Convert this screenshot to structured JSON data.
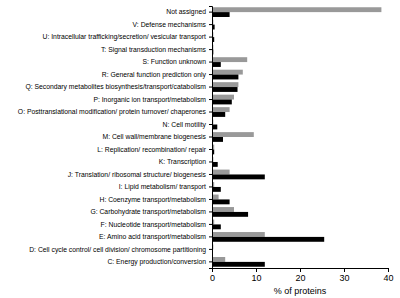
{
  "chart_data": {
    "type": "bar",
    "orientation": "horizontal",
    "x_label": "% of proteins",
    "categories": [
      "Not assigned",
      "V: Defense mechanisms",
      "U: Intracellular trafficking/secretion/ vesicular transport",
      "T: Signal transduction mechanisms",
      "S: Function unknown",
      "R: General function prediction only",
      "Q: Secondary metabolites biosynthesis/transport/catabolism",
      "P: Inorganic ion transport/metabolism",
      "O: Posttranslational modification/ protein turnover/ chaperones",
      "N: Cell motility",
      "M: Cell wall/membrane biogenesis",
      "L: Replication/ recombination/ repair",
      "K: Transcription",
      "J: Translation/ ribosomal structure/ biogenesis",
      "I: Lipid metabolism/ transport",
      "H: Coenzyme transport/metabolism",
      "G: Carbohydrate transport/metabolism",
      "F: Nucleotide transport/metabolism",
      "E: Amino acid transport/metabolism",
      "D: Cell cycle control/ cell division/ chromosome partitioning",
      "C: Energy production/conversion"
    ],
    "series": [
      {
        "color": "#999999",
        "values": [
          38.5,
          0.3,
          0.3,
          0.3,
          8,
          7,
          6,
          5,
          4,
          0.3,
          9.5,
          0.5,
          0.3,
          4,
          0.5,
          1.5,
          5,
          0.5,
          12,
          0.3,
          3
        ]
      },
      {
        "color": "#000000",
        "values": [
          4,
          0.6,
          0.5,
          0.3,
          2,
          6,
          5.8,
          4.5,
          3,
          1.2,
          2.5,
          0.5,
          1.3,
          12,
          2,
          4,
          8.2,
          2,
          25.5,
          0.2,
          12
        ]
      }
    ],
    "xlim": [
      0,
      40
    ],
    "xticks": [
      0,
      10,
      20,
      30,
      40
    ]
  }
}
